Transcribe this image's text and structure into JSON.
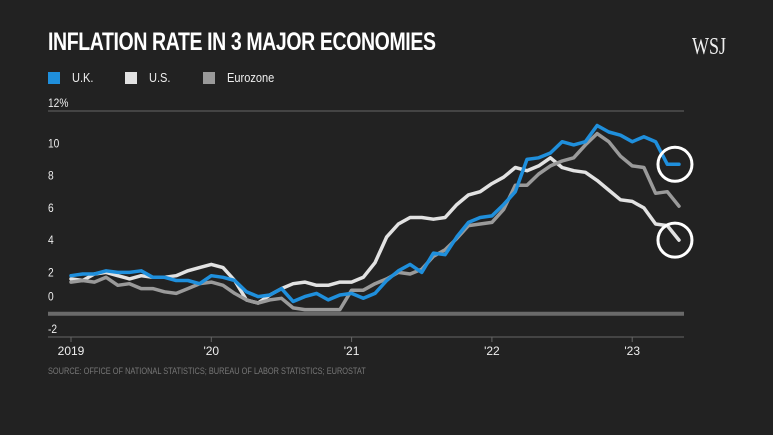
{
  "chart_data": {
    "type": "line",
    "title": "INFLATION RATE IN 3 MAJOR ECONOMIES",
    "source": "SOURCE: OFFICE OF NATIONAL STATISTICS; BUREAU OF LABOR STATISTICS; EUROSTAT",
    "logo": "WSJ",
    "xlabel": "",
    "ylabel": "",
    "ylim": [
      -2,
      12
    ],
    "y_ticks": [
      {
        "value": 12,
        "label": "12%"
      },
      {
        "value": 10,
        "label": "10"
      },
      {
        "value": 8,
        "label": "8"
      },
      {
        "value": 6,
        "label": "6"
      },
      {
        "value": 4,
        "label": "4"
      },
      {
        "value": 2,
        "label": "2"
      },
      {
        "value": 0,
        "label": "0"
      },
      {
        "value": -2,
        "label": "-2"
      }
    ],
    "x_range": [
      "2019-01",
      "2023-05"
    ],
    "x_ticks": [
      {
        "value": "2019-01",
        "label": "2019"
      },
      {
        "value": "2020-01",
        "label": "'20"
      },
      {
        "value": "2021-01",
        "label": "'21"
      },
      {
        "value": "2022-01",
        "label": "'22"
      },
      {
        "value": "2023-01",
        "label": "'23"
      }
    ],
    "x_frequency": "monthly",
    "grid": "horizontal at 12 and -2; zero line emphasized",
    "legend": "top-left",
    "series": [
      {
        "name": "U.S.",
        "color": "#e2e2e2",
        "values": [
          1.6,
          1.5,
          1.9,
          2.0,
          1.8,
          1.6,
          1.8,
          1.7,
          1.7,
          1.8,
          2.1,
          2.3,
          2.5,
          2.3,
          1.5,
          0.3,
          0.1,
          0.6,
          1.0,
          1.3,
          1.4,
          1.2,
          1.2,
          1.4,
          1.4,
          1.7,
          2.6,
          4.2,
          5.0,
          5.4,
          5.4,
          5.3,
          5.4,
          6.2,
          6.8,
          7.0,
          7.5,
          7.9,
          8.5,
          8.3,
          8.6,
          9.1,
          8.5,
          8.3,
          8.2,
          7.7,
          7.1,
          6.5,
          6.4,
          6.0,
          5.0,
          4.9,
          4.0
        ],
        "highlight_last": true
      },
      {
        "name": "Eurozone",
        "color": "#9a9a9a",
        "values": [
          1.4,
          1.5,
          1.4,
          1.7,
          1.2,
          1.3,
          1.0,
          1.0,
          0.8,
          0.7,
          1.0,
          1.3,
          1.4,
          1.2,
          0.7,
          0.3,
          0.1,
          0.3,
          0.4,
          -0.2,
          -0.3,
          -0.3,
          -0.3,
          -0.3,
          0.9,
          0.9,
          1.3,
          1.6,
          2.0,
          1.9,
          2.2,
          3.0,
          3.4,
          4.1,
          4.9,
          5.0,
          5.1,
          5.9,
          7.4,
          7.4,
          8.1,
          8.6,
          8.9,
          9.1,
          9.9,
          10.6,
          10.1,
          9.2,
          8.6,
          8.5,
          6.9,
          7.0,
          6.1
        ],
        "highlight_last": false
      },
      {
        "name": "U.K.",
        "color": "#1f8fdc",
        "values": [
          1.8,
          1.9,
          1.9,
          2.1,
          2.0,
          2.0,
          2.1,
          1.7,
          1.7,
          1.5,
          1.5,
          1.3,
          1.8,
          1.7,
          1.5,
          0.8,
          0.5,
          0.6,
          1.0,
          0.2,
          0.5,
          0.7,
          0.3,
          0.6,
          0.7,
          0.4,
          0.7,
          1.5,
          2.1,
          2.5,
          2.0,
          3.2,
          3.1,
          4.2,
          5.1,
          5.4,
          5.5,
          6.2,
          7.0,
          9.0,
          9.1,
          9.4,
          10.1,
          9.9,
          10.1,
          11.1,
          10.7,
          10.5,
          10.1,
          10.4,
          10.1,
          8.7,
          8.7
        ],
        "highlight_last": true
      }
    ],
    "legend_entries": [
      {
        "name": "U.K.",
        "color": "#1f8fdc"
      },
      {
        "name": "U.S.",
        "color": "#e2e2e2"
      },
      {
        "name": "Eurozone",
        "color": "#9a9a9a"
      }
    ]
  }
}
